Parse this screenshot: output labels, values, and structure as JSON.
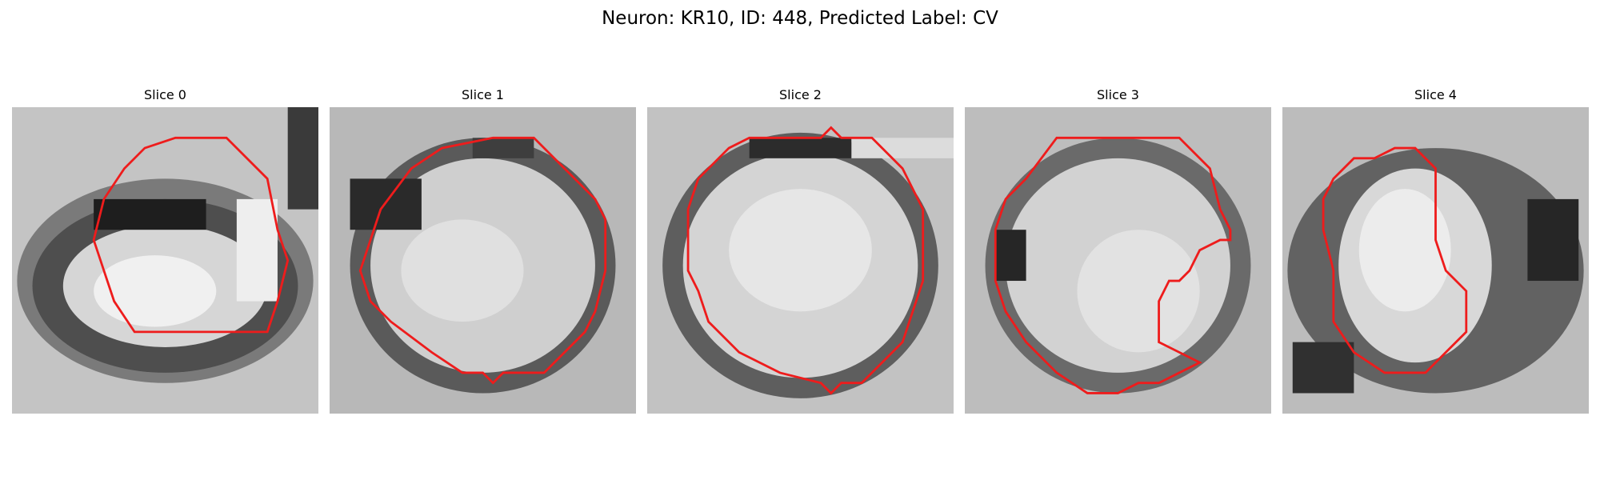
{
  "figure": {
    "title": "Neuron: KR10, ID: 448, Predicted Label: CV",
    "contour_color": "#ee1c1c",
    "colormap": "grayscale"
  },
  "panels": [
    {
      "title": "Slice 0"
    },
    {
      "title": "Slice 1"
    },
    {
      "title": "Slice 2"
    },
    {
      "title": "Slice 3"
    },
    {
      "title": "Slice 4"
    }
  ]
}
